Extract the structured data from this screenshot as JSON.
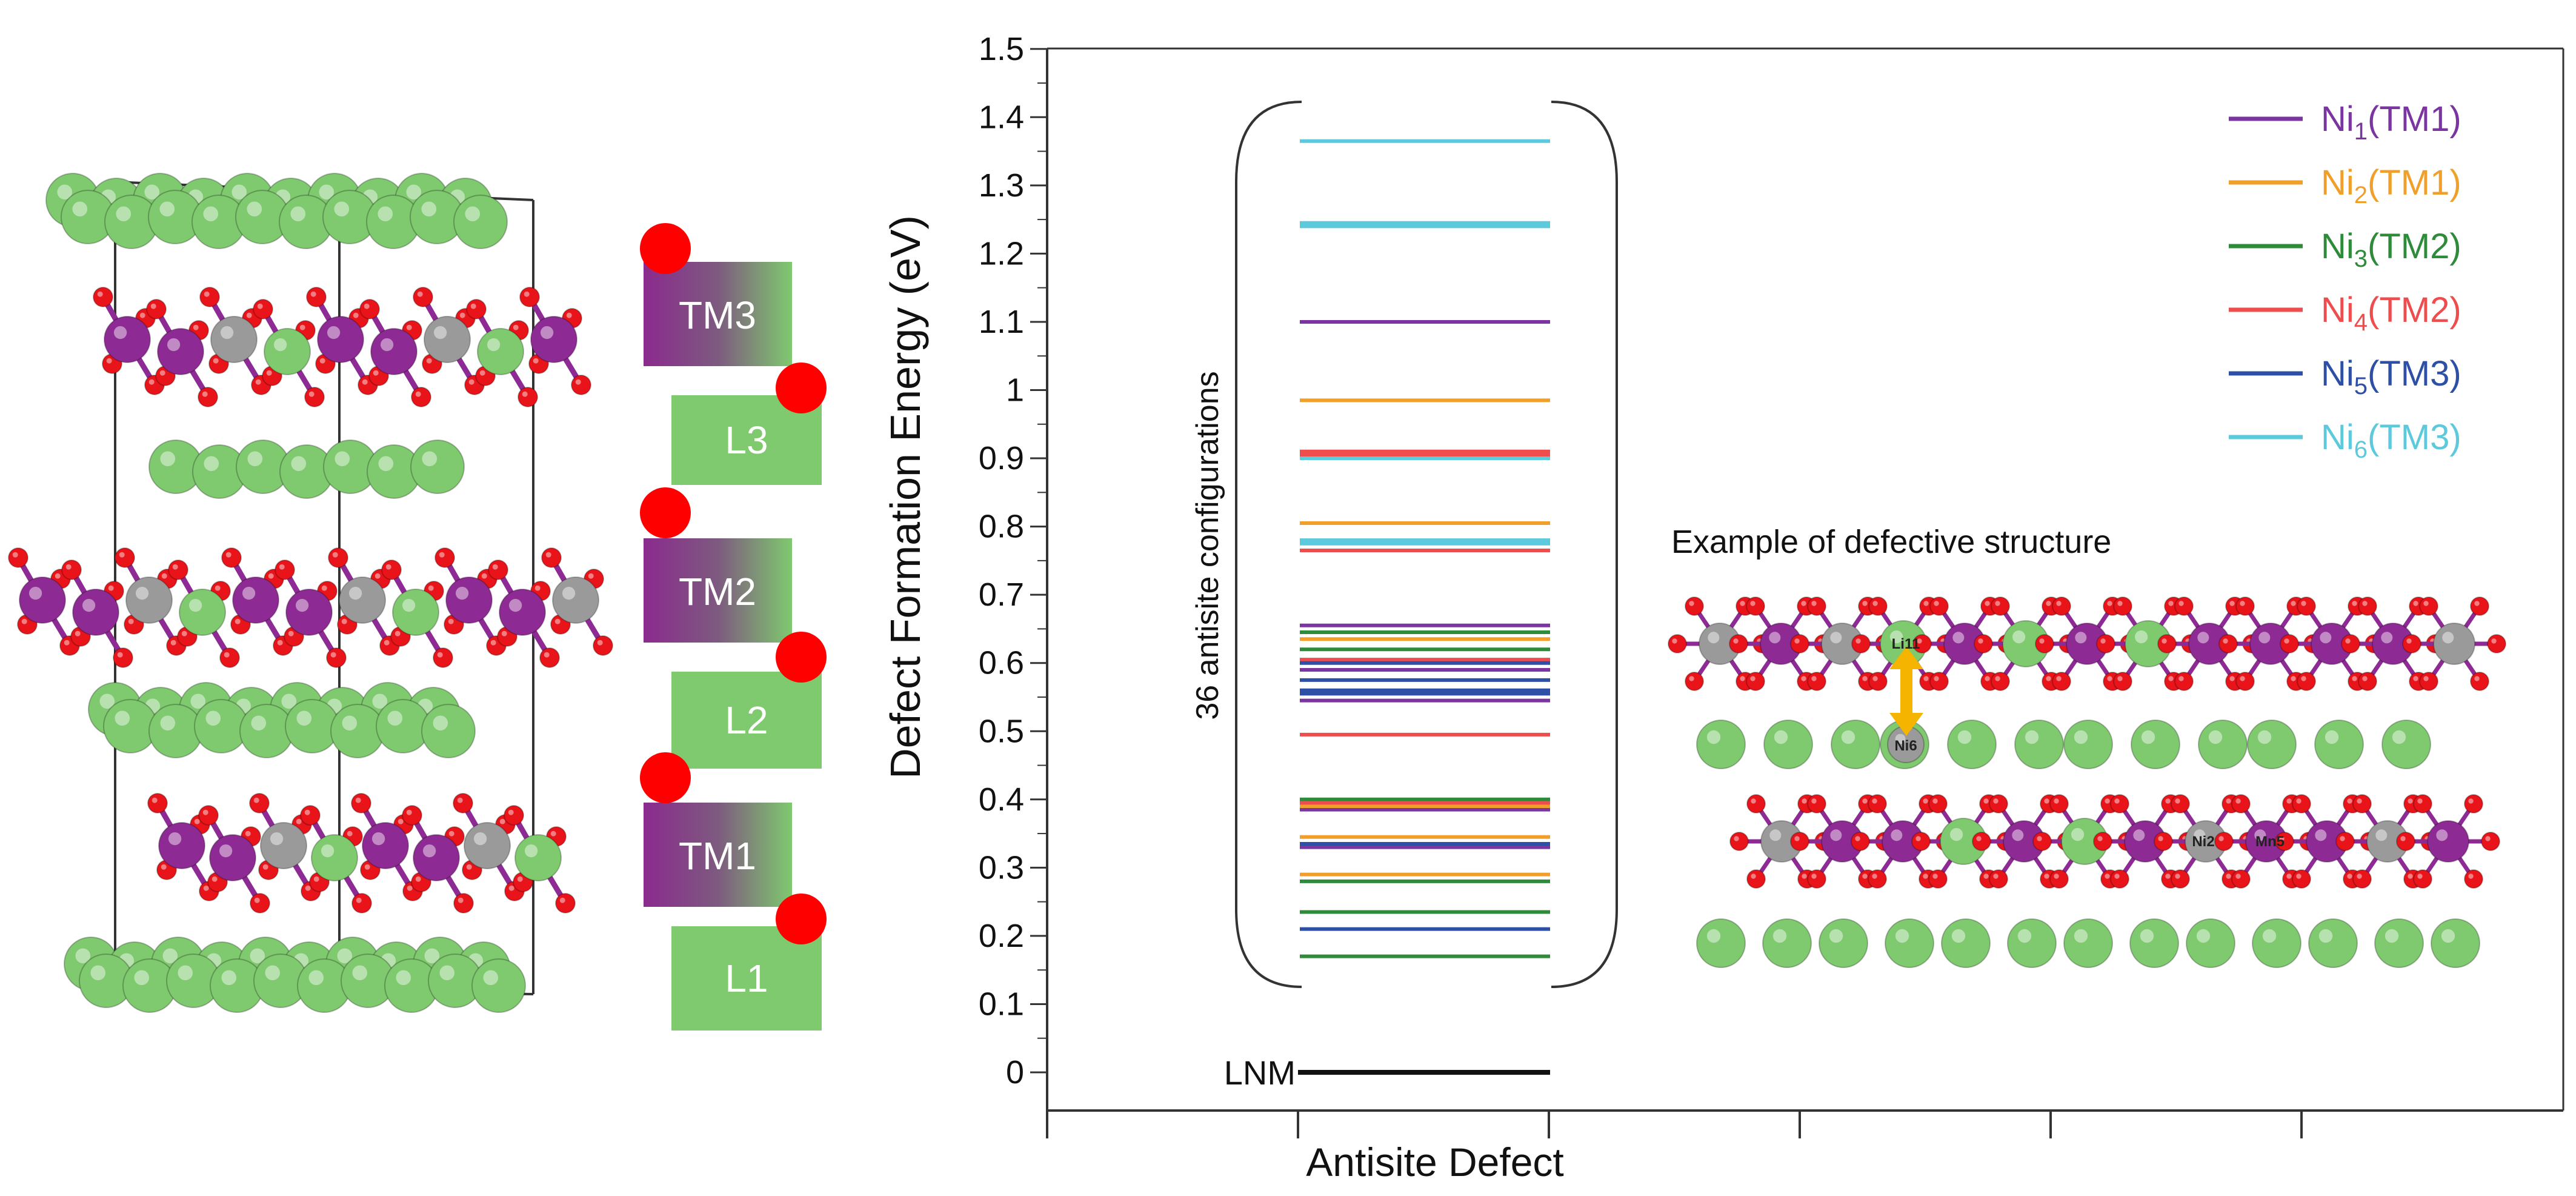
{
  "crystal_panel": {
    "layer_labels": [
      "TM3",
      "L3",
      "TM2",
      "L2",
      "TM1",
      "L1"
    ]
  },
  "colors": {
    "li": "#7fc96f",
    "tm_purple": "#8e2a94",
    "tm_grey": "#9a9a9a",
    "oxygen": "#e8141a",
    "axis": "#333333",
    "ni1": "#7a35a0",
    "ni2": "#f0a02a",
    "ni3": "#2e8b3a",
    "ni4": "#ef4d4d",
    "ni5": "#2e4fa6",
    "ni6": "#5cc9dc",
    "lnm": "#111111",
    "arrow": "#f5b400"
  },
  "chart_data": {
    "type": "line",
    "title": "",
    "xlabel": "Antisite Defect",
    "ylabel": "Defect Formation Energy (eV)",
    "ylim": [
      -0.05,
      1.5
    ],
    "yticks": [
      0,
      0.1,
      0.2,
      0.3,
      0.4,
      0.5,
      0.6,
      0.7,
      0.8,
      0.9,
      1,
      1.1,
      1.2,
      1.3,
      1.4,
      1.5
    ],
    "ytick_labels": [
      "0",
      "0.1",
      "0.2",
      "0.3",
      "0.4",
      "0.5",
      "0.6",
      "0.7",
      "0.8",
      "0.9",
      "1",
      "1.1",
      "1.2",
      "1.3",
      "1.4",
      "1.5"
    ],
    "grid": false,
    "legend_position": "top-right",
    "bracket_label": "36 antisite configurations",
    "reference": {
      "name": "LNM",
      "value": 0.0
    },
    "series": [
      {
        "name": "Ni1(TM1)",
        "main": "Ni",
        "sub": "1",
        "site": "(TM1)",
        "color": "#7a35a0",
        "values": [
          1.1,
          0.655,
          0.59,
          0.545,
          0.385,
          0.33
        ]
      },
      {
        "name": "Ni2(TM1)",
        "main": "Ni",
        "sub": "2",
        "site": "(TM1)",
        "color": "#f0a02a",
        "values": [
          0.985,
          0.805,
          0.635,
          0.39,
          0.345,
          0.29
        ]
      },
      {
        "name": "Ni3(TM2)",
        "main": "Ni",
        "sub": "3",
        "site": "(TM2)",
        "color": "#2e8b3a",
        "values": [
          0.645,
          0.62,
          0.4,
          0.28,
          0.235,
          0.17
        ]
      },
      {
        "name": "Ni4(TM2)",
        "main": "Ni",
        "sub": "4",
        "site": "(TM2)",
        "color": "#ef4d4d",
        "values": [
          0.91,
          0.905,
          0.765,
          0.605,
          0.495,
          0.395
        ]
      },
      {
        "name": "Ni5(TM3)",
        "main": "Ni",
        "sub": "5",
        "site": "(TM3)",
        "color": "#2e4fa6",
        "values": [
          0.6,
          0.575,
          0.56,
          0.335,
          0.21,
          0.555
        ]
      },
      {
        "name": "Ni6(TM3)",
        "main": "Ni",
        "sub": "6",
        "site": "(TM3)",
        "color": "#5cc9dc",
        "values": [
          1.365,
          1.245,
          1.24,
          0.9,
          0.78,
          0.775
        ]
      }
    ]
  },
  "inset": {
    "title": "Example of defective structure",
    "atom_labels": [
      "Li11",
      "Ni6",
      "Ni2",
      "Mn5"
    ]
  }
}
